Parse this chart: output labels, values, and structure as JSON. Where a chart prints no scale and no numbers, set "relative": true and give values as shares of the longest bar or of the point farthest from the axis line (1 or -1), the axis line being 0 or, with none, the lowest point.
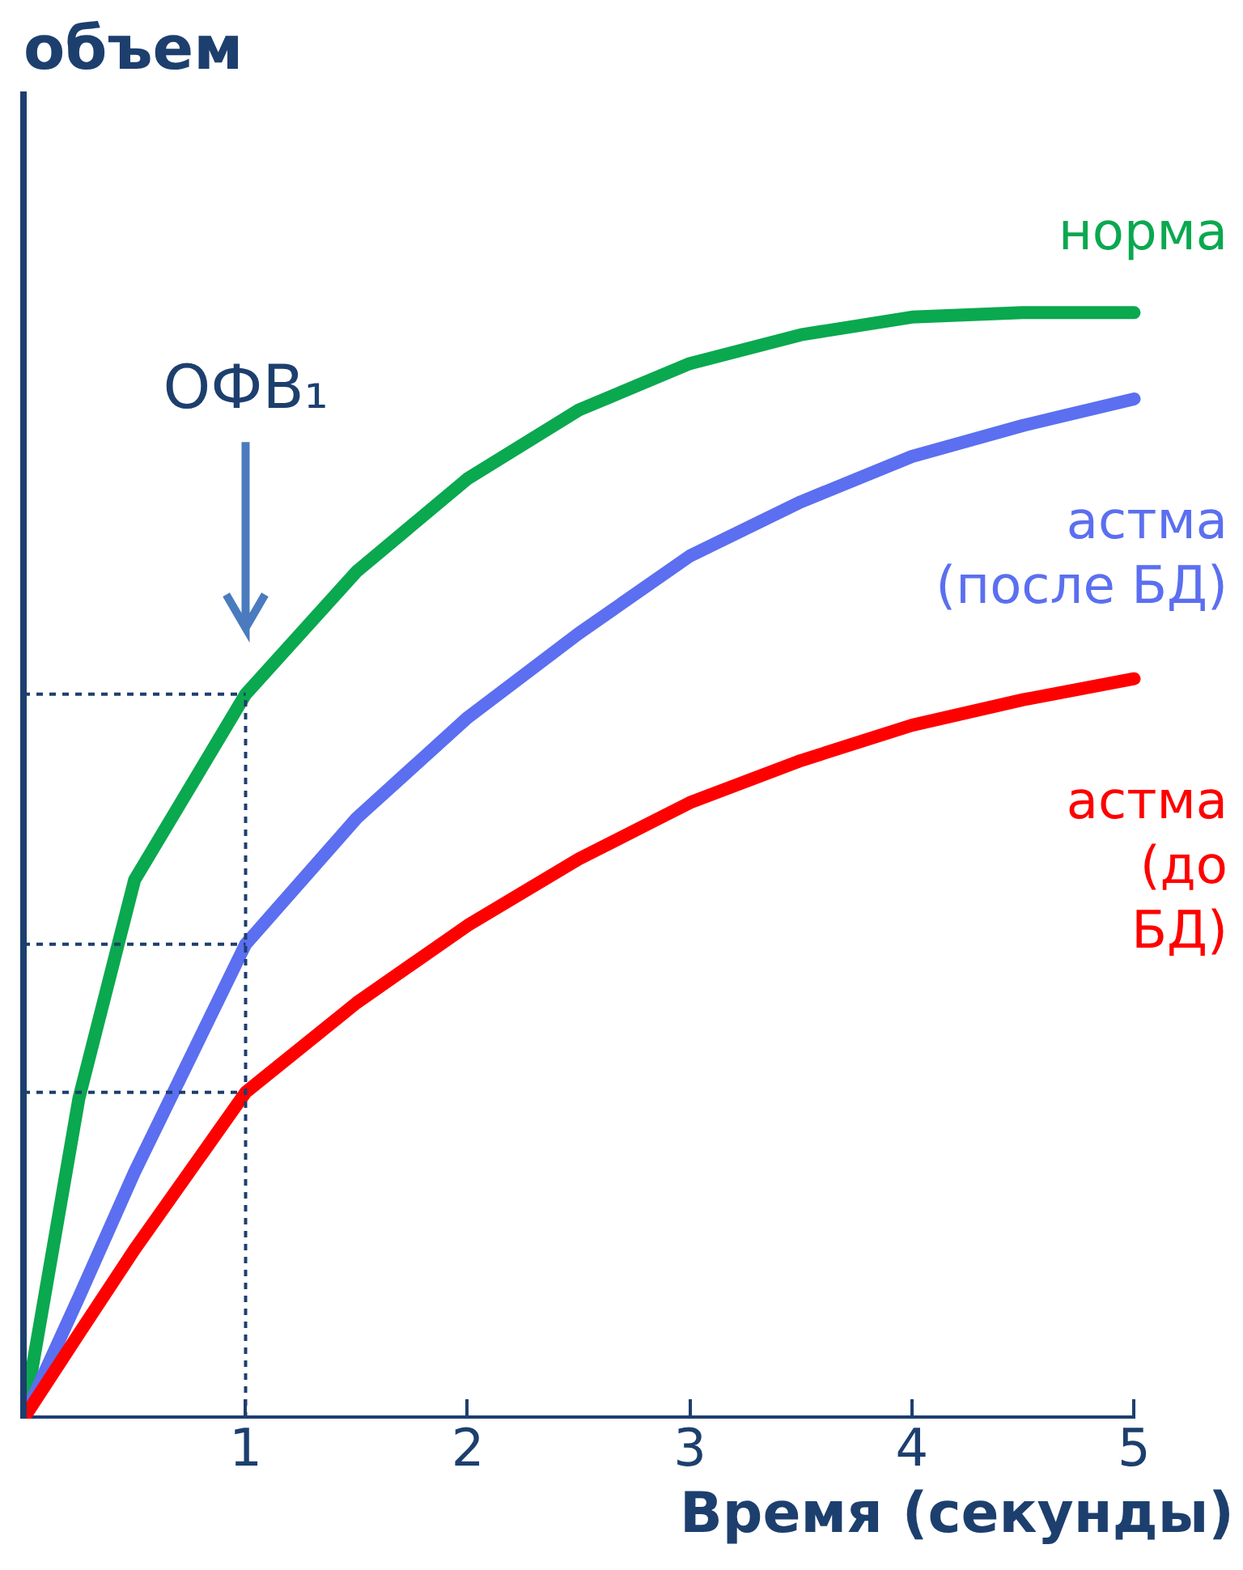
{
  "chart_data": {
    "type": "line",
    "relative": true,
    "ylabel": "объем",
    "xlabel": "Время (секунды)",
    "xlim": [
      0,
      5
    ],
    "xticks": [
      1,
      2,
      3,
      4,
      5
    ],
    "tick_labels": "x",
    "grid": false,
    "marker": "none",
    "line_style": "solid",
    "x": [
      0,
      0.25,
      0.5,
      1,
      1.5,
      2,
      2.5,
      3,
      3.5,
      4,
      4.5,
      5
    ],
    "series": [
      {
        "name": "норма",
        "color": "#0aa84f",
        "values": [
          0,
          0.29,
          0.487,
          0.655,
          0.766,
          0.85,
          0.912,
          0.954,
          0.98,
          0.996,
          1.0,
          1.0
        ]
      },
      {
        "name": "астма\n(после БД)",
        "color": "#5b6ff0",
        "values": [
          0,
          0.11,
          0.223,
          0.429,
          0.543,
          0.634,
          0.71,
          0.78,
          0.829,
          0.87,
          0.898,
          0.922
        ]
      },
      {
        "name": "астма\n(до\nБД)",
        "color": "#ff0000",
        "values": [
          0,
          0.077,
          0.153,
          0.295,
          0.376,
          0.446,
          0.506,
          0.557,
          0.595,
          0.627,
          0.65,
          0.669
        ]
      }
    ],
    "ref_lines": [
      {
        "axis": "x",
        "value": 1,
        "color": "#1d3f6e",
        "line_style": "dashed"
      },
      {
        "axis": "y",
        "value": 0.655,
        "color": "#1d3f6e",
        "line_style": "dashed"
      },
      {
        "axis": "y",
        "value": 0.429,
        "color": "#1d3f6e",
        "line_style": "dashed"
      },
      {
        "axis": "y",
        "value": 0.295,
        "color": "#1d3f6e",
        "line_style": "dashed"
      }
    ],
    "annotations": [
      "ОФВ₁"
    ]
  }
}
